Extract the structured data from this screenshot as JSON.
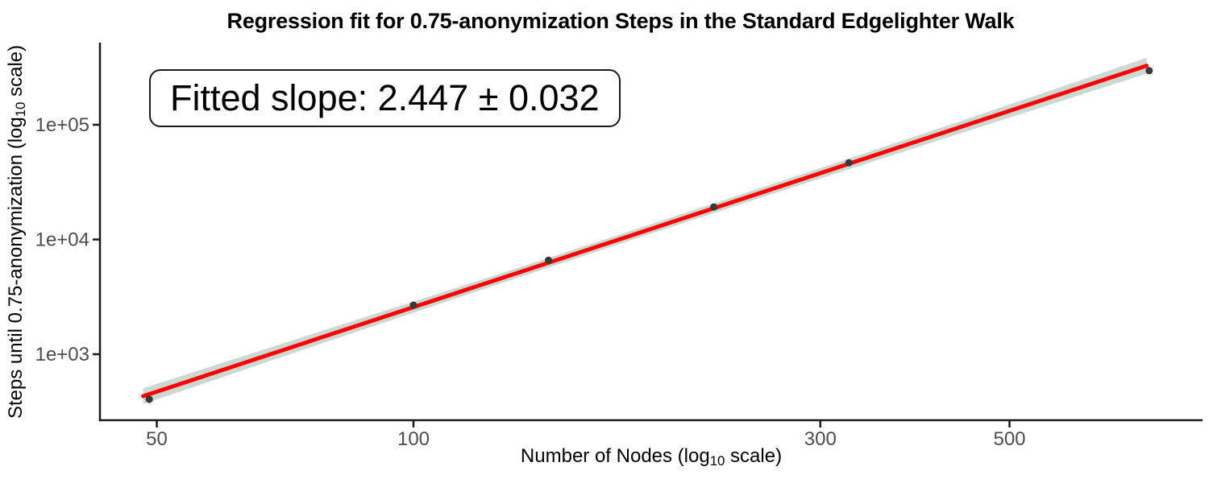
{
  "labels": {
    "title": "Regression fit for 0.75-anonymization Steps in the Standard Edgelighter Walk",
    "y_axis_prefix": "Steps until 0.75-anonymization (log",
    "y_axis_sub": "10",
    "y_axis_suffix": " scale)",
    "x_axis_prefix": "Number of Nodes (log",
    "x_axis_sub": "10",
    "x_axis_suffix": " scale)"
  },
  "colors": {
    "fit_line": "#fe0000",
    "band": "#ccd8d2",
    "point": "#383838",
    "axis": "#1a1a1a",
    "tick_label": "#4d4d4d",
    "text": "#000000",
    "background": "#ffffff"
  },
  "chart_data": {
    "type": "scatter",
    "title": "Regression fit for 0.75-anonymization Steps in the Standard Edgelighter Walk",
    "xlabel": "Number of Nodes (log10 scale)",
    "ylabel": "Steps until 0.75-anonymization (log10 scale)",
    "x_scale": "log10",
    "y_scale": "log10",
    "grid": false,
    "legend": false,
    "xlim": [
      43,
      840
    ],
    "ylim": [
      266,
      520000
    ],
    "x_ticks": [
      "50",
      "100",
      "300",
      "500"
    ],
    "y_ticks": [
      "1e+03",
      "1e+04",
      "1e+05"
    ],
    "points": [
      {
        "n": 49,
        "steps": 404
      },
      {
        "n": 100,
        "steps": 2680
      },
      {
        "n": 144,
        "steps": 6600
      },
      {
        "n": 225,
        "steps": 19200
      },
      {
        "n": 324,
        "steps": 46600
      },
      {
        "n": 729,
        "steps": 296000
      }
    ],
    "fit": {
      "slope": 2.447,
      "slope_se": 0.032,
      "intercept_log10": -1.484,
      "line": {
        "n_start": 48.2,
        "steps_start": 431,
        "n_end": 724,
        "steps_end": 327000
      },
      "band": {
        "n": [
          48.2,
          79,
          126,
          186,
          282,
          447,
          724
        ],
        "upper": [
          505,
          1640,
          4990,
          12900,
          35900,
          113000,
          383000
        ],
        "lower": [
          368,
          1280,
          4090,
          10700,
          29400,
          88500,
          279000
        ]
      }
    },
    "annotation": "Fitted slope: 2.447 ± 0.032"
  }
}
